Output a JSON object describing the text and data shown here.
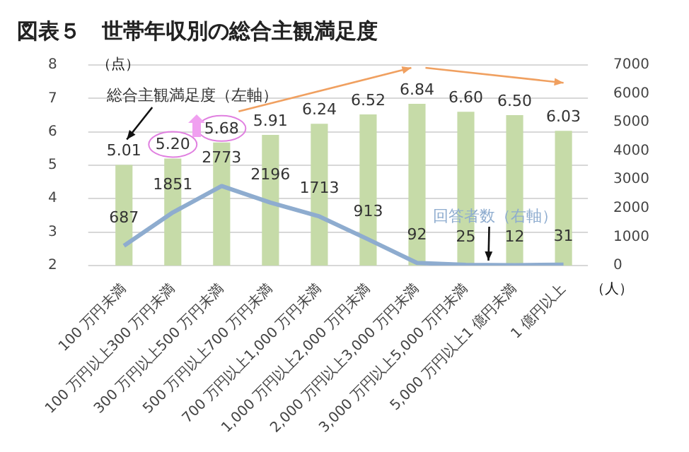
{
  "chart_data": {
    "type": "bar",
    "title": "図表５　世帯年収別の総合主観満足度",
    "ylabel": "（点）",
    "y2label": "（人）",
    "categories": [
      "100 万円未満",
      "100 万円以上300 万円未満",
      "300 万円以上500 万円未満",
      "500 万円以上700 万円未満",
      "700 万円以上1,000 万円未満",
      "1,000 万円以上2,000 万円未満",
      "2,000 万円以上3,000 万円未満",
      "3,000 万円以上5,000 万円未満",
      "5,000 万円以上1 億円未満",
      "1 億円以上"
    ],
    "series": [
      {
        "name": "総合主観満足度（左軸）",
        "color": "#c6dba8",
        "values": [
          5.01,
          5.2,
          5.68,
          5.91,
          6.24,
          6.52,
          6.84,
          6.6,
          6.5,
          6.03
        ],
        "value_labels": [
          "5.01",
          "5.20",
          "5.68",
          "5.91",
          "6.24",
          "6.52",
          "6.84",
          "6.60",
          "6.50",
          "6.03"
        ]
      },
      {
        "name": "回答者数（右軸）",
        "type": "line",
        "axis": "y2",
        "color": "#8eaccf",
        "values": [
          687,
          1851,
          2773,
          2196,
          1713,
          913,
          92,
          25,
          12,
          31
        ],
        "value_labels": [
          "687",
          "1851",
          "2773",
          "2196",
          "1713",
          "913",
          "92",
          "25",
          "12",
          "31"
        ]
      }
    ],
    "ylim": [
      2,
      8
    ],
    "yticks": [
      2,
      3,
      4,
      5,
      6,
      7,
      8
    ],
    "y2lim": [
      0,
      7000
    ],
    "y2ticks": [
      0,
      1000,
      2000,
      3000,
      4000,
      5000,
      6000,
      7000
    ],
    "grid": "y",
    "legend": false,
    "marker": "none"
  }
}
